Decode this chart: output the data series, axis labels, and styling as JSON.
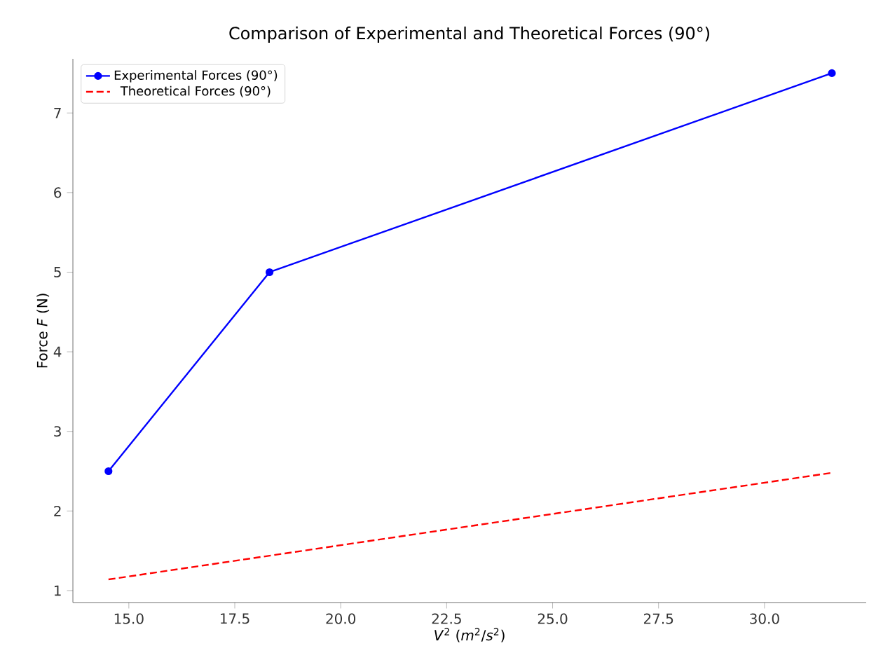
{
  "chart_data": {
    "type": "line",
    "title": "Comparison of Experimental and Theoretical Forces (90°)",
    "xlabel": "*V*$^{2}$ (*m*$^{2}$/*s*$^{2}$)",
    "ylabel": "Force *F* (N)",
    "xlim": [
      13.68,
      32.4
    ],
    "xticks": [
      {
        "value": 15,
        "label": "15.0"
      },
      {
        "value": 17.5,
        "label": "17.5"
      },
      {
        "value": 20,
        "label": "20.0"
      },
      {
        "value": 22.5,
        "label": "22.5"
      },
      {
        "value": 25,
        "label": "25.0"
      },
      {
        "value": 27.5,
        "label": "27.5"
      },
      {
        "value": 30,
        "label": "30.0"
      }
    ],
    "ylim": [
      0.85,
      7.68
    ],
    "yticks": [
      1,
      2,
      3,
      4,
      5,
      6,
      7
    ],
    "grid": false,
    "legend": "top left",
    "series": [
      {
        "name": "Experimental Forces (90°)",
        "color": "#0000ff",
        "x": [
          14.52,
          18.32,
          31.59
        ],
        "values": [
          2.5,
          5.0,
          7.5
        ],
        "marker": "circle",
        "line_style": "solid"
      },
      {
        "name": "Theoretical Forces (90°)",
        "color": "#ff0000",
        "x": [
          14.52,
          31.59
        ],
        "values": [
          1.14,
          2.48
        ],
        "marker": "none",
        "line_style": "dashed"
      }
    ]
  }
}
